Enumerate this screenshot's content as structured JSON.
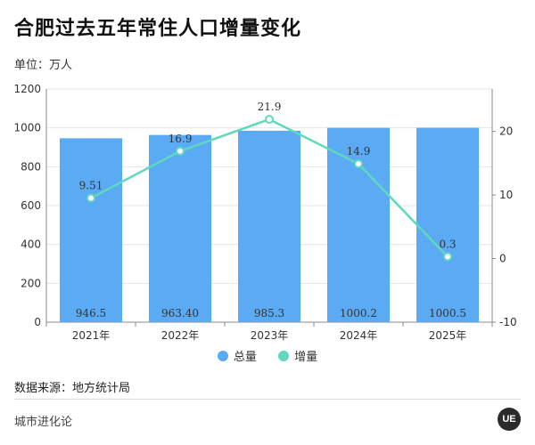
{
  "page": {
    "title": "合肥过去五年常住人口增量变化",
    "unit_label": "单位：万人",
    "source_label": "数据来源：地方统计局",
    "brand_text": "城市进化论",
    "logo_text": "UE"
  },
  "chart_data": {
    "type": "bar",
    "title": "合肥过去五年常住人口增量变化",
    "categories": [
      "2021年",
      "2022年",
      "2023年",
      "2024年",
      "2025年"
    ],
    "series": [
      {
        "name": "总量",
        "type": "bar",
        "axis": "left",
        "color": "#5aabf3",
        "values": [
          946.5,
          963.4,
          985.3,
          1000.2,
          1000.5
        ],
        "labels": [
          "946.5",
          "963.40",
          "985.3",
          "1000.2",
          "1000.5"
        ]
      },
      {
        "name": "增量",
        "type": "line",
        "axis": "right",
        "color": "#5fd8be",
        "values": [
          9.51,
          16.9,
          21.9,
          14.9,
          0.3
        ],
        "labels": [
          "9.51",
          "16.9",
          "21.9",
          "14.9",
          "0.3"
        ]
      }
    ],
    "y_left": {
      "min": 0,
      "max": 1200,
      "ticks": [
        0,
        200,
        400,
        600,
        800,
        1000,
        1200
      ]
    },
    "y_right": {
      "min": -10,
      "max": 26.67,
      "ticks": [
        -10,
        0,
        10,
        20
      ]
    },
    "legend": {
      "position": "bottom",
      "entries": [
        "总量",
        "增量"
      ]
    },
    "grid": true
  }
}
